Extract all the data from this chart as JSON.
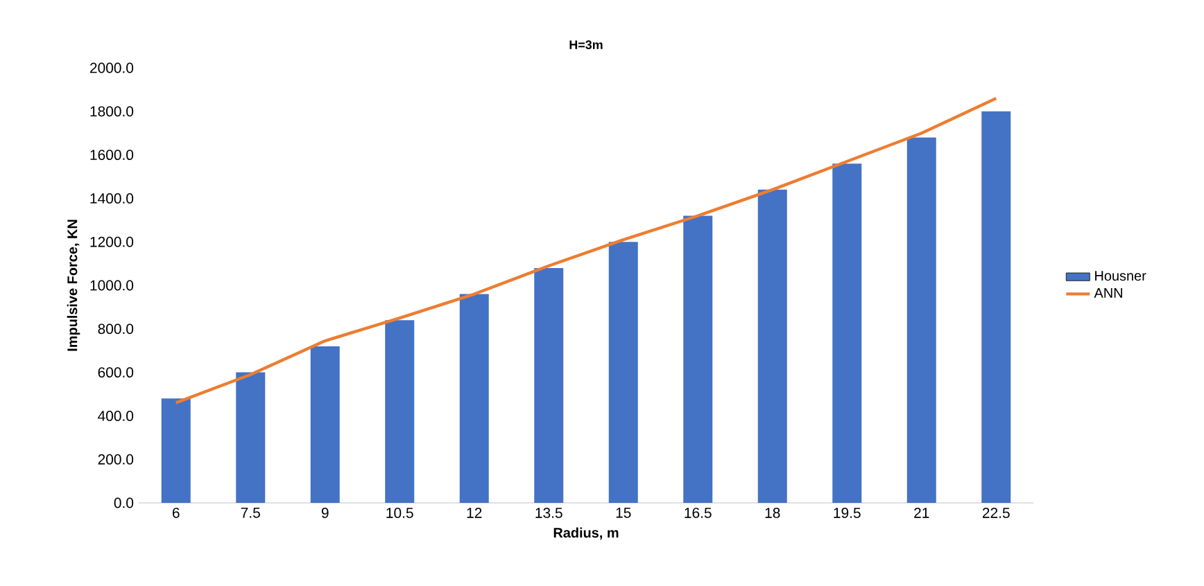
{
  "chart_data": {
    "type": "bar",
    "title": "H=3m",
    "xlabel": "Radius, m",
    "ylabel": "Impulsive Force, KN",
    "categories": [
      "6",
      "7.5",
      "9",
      "10.5",
      "12",
      "13.5",
      "15",
      "16.5",
      "18",
      "19.5",
      "21",
      "22.5"
    ],
    "series": [
      {
        "name": "Housner",
        "color": "#4472c4",
        "values": [
          480,
          600,
          720,
          840,
          960,
          1080,
          1200,
          1320,
          1440,
          1560,
          1680,
          1800
        ]
      },
      {
        "name": "ANN",
        "type": "line",
        "color": "#ed7d31",
        "values": [
          460,
          590,
          745,
          850,
          960,
          1090,
          1210,
          1320,
          1440,
          1570,
          1700,
          1860
        ]
      }
    ],
    "ylim": [
      0,
      2000
    ],
    "yticks": [
      {
        "value": 0,
        "label": "0.0"
      },
      {
        "value": 200,
        "label": "200.0"
      },
      {
        "value": 400,
        "label": "400.0"
      },
      {
        "value": 600,
        "label": "600.0"
      },
      {
        "value": 800,
        "label": "800.0"
      },
      {
        "value": 1000,
        "label": "1000.0"
      },
      {
        "value": 1200,
        "label": "1200.0"
      },
      {
        "value": 1400,
        "label": "1400.0"
      },
      {
        "value": 1600,
        "label": "1600.0"
      },
      {
        "value": 1800,
        "label": "1800.0"
      },
      {
        "value": 2000,
        "label": "2000.0"
      }
    ],
    "grid": false,
    "legend": "right"
  }
}
